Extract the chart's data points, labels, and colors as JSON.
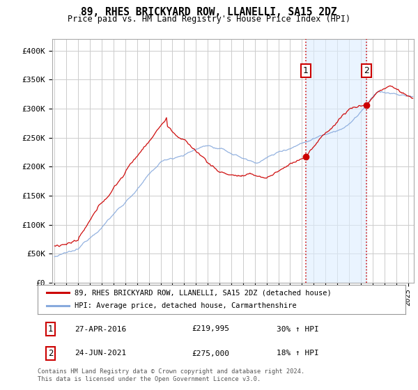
{
  "title": "89, RHES BRICKYARD ROW, LLANELLI, SA15 2DZ",
  "subtitle": "Price paid vs. HM Land Registry's House Price Index (HPI)",
  "ylim": [
    0,
    420000
  ],
  "yticks": [
    0,
    50000,
    100000,
    150000,
    200000,
    250000,
    300000,
    350000,
    400000
  ],
  "ytick_labels": [
    "£0",
    "£50K",
    "£100K",
    "£150K",
    "£200K",
    "£250K",
    "£300K",
    "£350K",
    "£400K"
  ],
  "background_color": "#ffffff",
  "plot_bg_color": "#ffffff",
  "grid_color": "#cccccc",
  "sale1_x": 2016.32,
  "sale1_price": 219995,
  "sale1_date_str": "27-APR-2016",
  "sale1_hpi_pct": "30%",
  "sale2_x": 2021.48,
  "sale2_price": 275000,
  "sale2_date_str": "24-JUN-2021",
  "sale2_hpi_pct": "18%",
  "red_line_color": "#cc0000",
  "blue_line_color": "#88aadd",
  "shade_color": "#ddeeff",
  "legend_label_red": "89, RHES BRICKYARD ROW, LLANELLI, SA15 2DZ (detached house)",
  "legend_label_blue": "HPI: Average price, detached house, Carmarthenshire",
  "footer": "Contains HM Land Registry data © Crown copyright and database right 2024.\nThis data is licensed under the Open Government Licence v3.0.",
  "xmin": 1994.8,
  "xmax": 2025.5
}
